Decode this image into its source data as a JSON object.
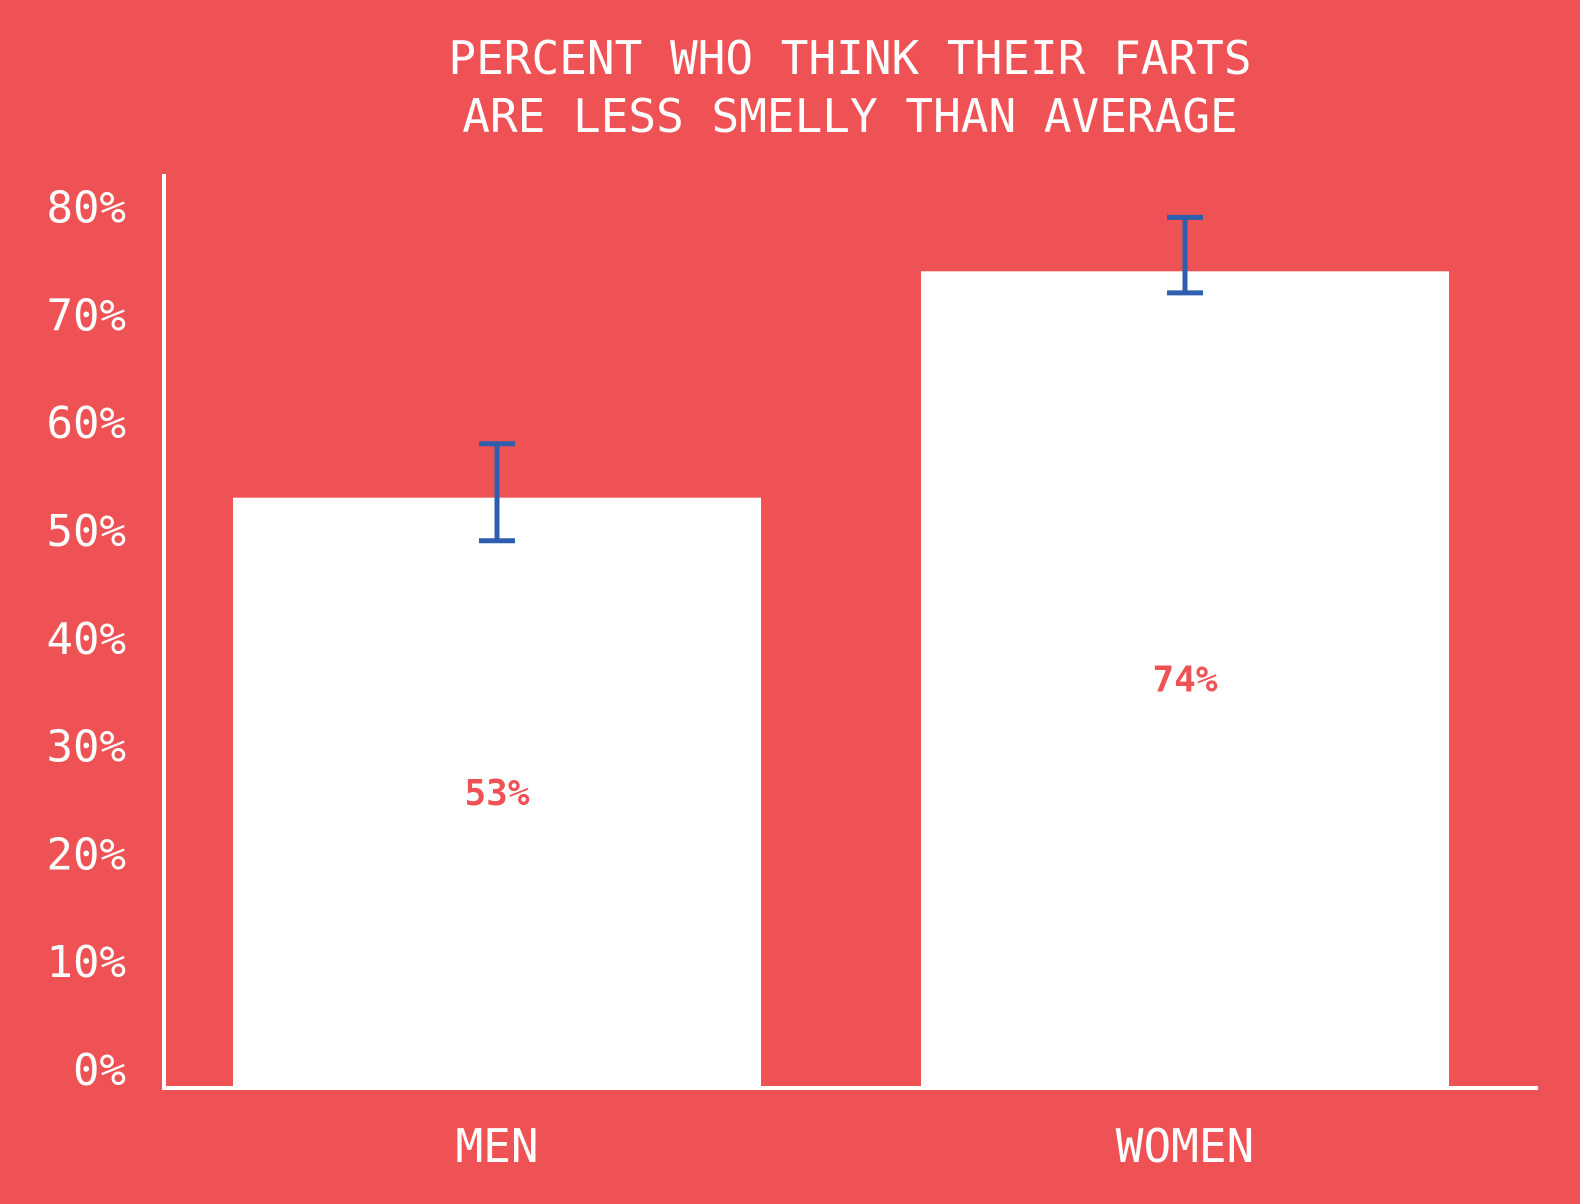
{
  "colors": {
    "background": "#ef5254",
    "bar": "#ffffff",
    "axis": "#ffffff",
    "text": "#ffffff",
    "error_bar": "#2e5fae",
    "data_label": "#ef5254"
  },
  "chart_data": {
    "type": "bar",
    "title_lines": [
      "PERCENT WHO THINK THEIR FARTS",
      "ARE LESS SMELLY THAN AVERAGE"
    ],
    "categories": [
      "MEN",
      "WOMEN"
    ],
    "values": [
      53,
      74
    ],
    "data_labels": [
      "53%",
      "74%"
    ],
    "error_bars": [
      {
        "low": 49,
        "high": 58
      },
      {
        "low": 72,
        "high": 79
      }
    ],
    "ylim": [
      0,
      85
    ],
    "yticks": [
      0,
      10,
      20,
      30,
      40,
      50,
      60,
      70,
      80
    ],
    "ytick_labels": [
      "0%",
      "10%",
      "20%",
      "30%",
      "40%",
      "50%",
      "60%",
      "70%",
      "80%"
    ],
    "xlabel": "",
    "ylabel": "",
    "grid": false,
    "legend": "none"
  }
}
